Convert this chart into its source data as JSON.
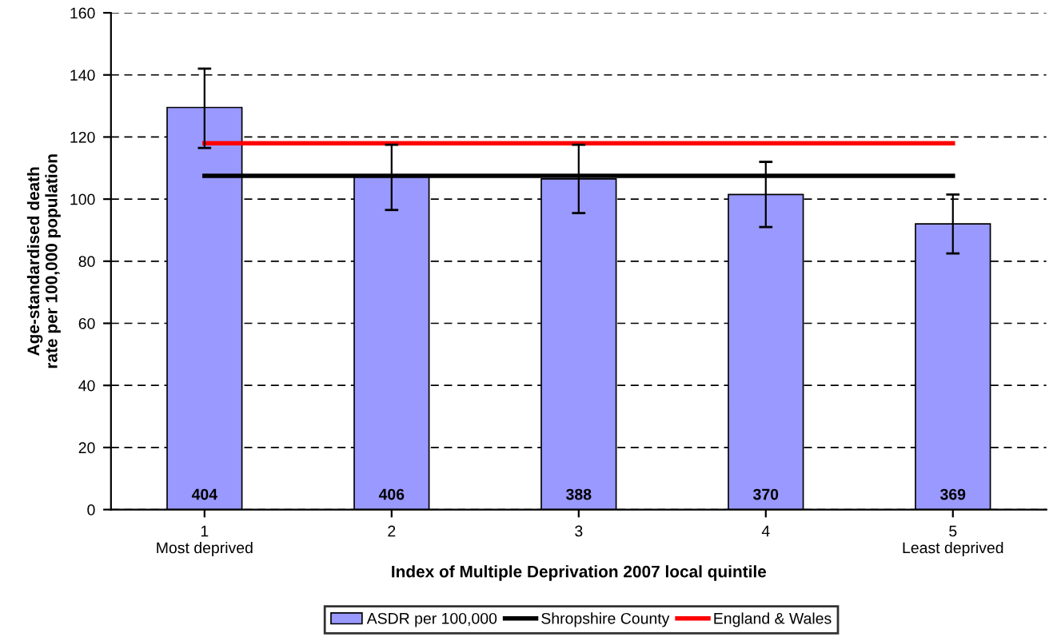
{
  "chart_data": {
    "type": "bar",
    "xlabel": "Index of Multiple Deprivation 2007 local quintile",
    "ylabel": "Age-standardised death\nrate per 100,000 population",
    "categories": [
      "1\nMost deprived",
      "2",
      "3",
      "4",
      "5\nLeast deprived"
    ],
    "series": [
      {
        "name": "ASDR per 100,000",
        "color": "#9999ff",
        "values": [
          129.5,
          107.5,
          106.5,
          101.5,
          92
        ],
        "errors": [
          [
            116.5,
            142
          ],
          [
            96.5,
            117.5
          ],
          [
            95.5,
            117.5
          ],
          [
            91,
            112
          ],
          [
            82.5,
            101.5
          ]
        ]
      },
      {
        "name": "Shropshire County",
        "type": "line",
        "color": "#000000",
        "values": [
          107.5,
          107.5,
          107.5,
          107.5,
          107.5
        ]
      },
      {
        "name": "England & Wales",
        "type": "line",
        "color": "#ff0000",
        "values": [
          118,
          118,
          118,
          118,
          118
        ]
      }
    ],
    "annotations": [
      {
        "text": "404",
        "x": "1\nMost deprived",
        "y": 0
      },
      {
        "text": "406",
        "x": "2",
        "y": 0
      },
      {
        "text": "388",
        "x": "3",
        "y": 0
      },
      {
        "text": "370",
        "x": "4",
        "y": 0
      },
      {
        "text": "369",
        "x": "5\nLeast deprived",
        "y": 0
      }
    ],
    "ylim": [
      0,
      160
    ],
    "yticks": [
      0,
      20,
      40,
      60,
      80,
      100,
      120,
      140,
      160
    ],
    "grid": "y",
    "legend": "bottom",
    "marker": "none",
    "line_style": "solid"
  }
}
